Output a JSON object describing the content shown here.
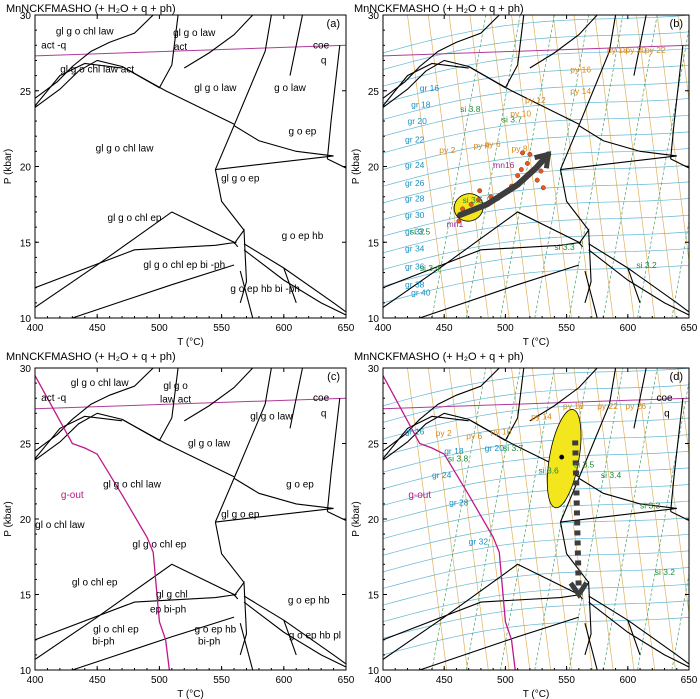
{
  "chart_data": [
    {
      "type": "phase-diagram",
      "panel_label": "(a)",
      "title": "MnNCKFMASHO (+ H₂O + q + ph)",
      "xlabel": "T (°C)",
      "ylabel": "P (kbar)",
      "xlim": [
        400,
        650
      ],
      "ylim": [
        10,
        30
      ],
      "xticks": [
        400,
        450,
        500,
        550,
        600,
        650
      ],
      "yticks": [
        10,
        15,
        20,
        25,
        30
      ],
      "field_labels": [
        {
          "text": "gl g o chl law",
          "x": 440,
          "y": 28.7
        },
        {
          "text": "act -q",
          "x": 415,
          "y": 27.8
        },
        {
          "text": "gl g o law",
          "x": 528,
          "y": 28.6
        },
        {
          "text": "act",
          "x": 517,
          "y": 27.7
        },
        {
          "text": "coe",
          "x": 630,
          "y": 27.8
        },
        {
          "text": "q",
          "x": 632,
          "y": 26.8
        },
        {
          "text": "gl g o chl law act",
          "x": 450,
          "y": 26.2
        },
        {
          "text": "gl g o law",
          "x": 545,
          "y": 25.0
        },
        {
          "text": "g o law",
          "x": 605,
          "y": 25.0
        },
        {
          "text": "g o ep",
          "x": 615,
          "y": 22.1
        },
        {
          "text": "gl g o chl law",
          "x": 472,
          "y": 21.0
        },
        {
          "text": "gl g o ep",
          "x": 565,
          "y": 19.0
        },
        {
          "text": "gl g o chl ep",
          "x": 480,
          "y": 16.4
        },
        {
          "text": "g o ep hb",
          "x": 615,
          "y": 15.2
        },
        {
          "text": "gl g o chl ep bi -ph",
          "x": 520,
          "y": 13.3
        },
        {
          "text": "g o ep hb bi -ph",
          "x": 585,
          "y": 11.7
        }
      ],
      "contours": []
    },
    {
      "type": "phase-diagram",
      "panel_label": "(b)",
      "title": "MnNCKFMASHO (+ H₂O + q + ph)",
      "xlabel": "T (°C)",
      "ylabel": "P (kbar)",
      "xlim": [
        400,
        650
      ],
      "ylim": [
        10,
        30
      ],
      "xticks": [
        400,
        450,
        500,
        550,
        600,
        650
      ],
      "yticks": [
        10,
        15,
        20,
        25,
        30
      ],
      "field_labels": [],
      "contours": [
        {
          "text": "gr 16",
          "x": 430,
          "y": 25.0,
          "color": "#1a8fc0"
        },
        {
          "text": "gr 18",
          "x": 423,
          "y": 23.9,
          "color": "#1a8fc0"
        },
        {
          "text": "gr 20",
          "x": 420,
          "y": 22.8,
          "color": "#1a8fc0"
        },
        {
          "text": "gr 22",
          "x": 418,
          "y": 21.6,
          "color": "#1a8fc0"
        },
        {
          "text": "gr 24",
          "x": 418,
          "y": 19.9,
          "color": "#1a8fc0"
        },
        {
          "text": "gr 26",
          "x": 418,
          "y": 18.7,
          "color": "#1a8fc0"
        },
        {
          "text": "gr 28",
          "x": 418,
          "y": 17.7,
          "color": "#1a8fc0"
        },
        {
          "text": "gr 30",
          "x": 418,
          "y": 16.6,
          "color": "#1a8fc0"
        },
        {
          "text": "gr 32",
          "x": 418,
          "y": 15.5,
          "color": "#1a8fc0"
        },
        {
          "text": "gr 34",
          "x": 418,
          "y": 14.4,
          "color": "#1a8fc0"
        },
        {
          "text": "gr 36",
          "x": 418,
          "y": 13.2,
          "color": "#1a8fc0"
        },
        {
          "text": "gr 38",
          "x": 418,
          "y": 12.0,
          "color": "#1a8fc0"
        },
        {
          "text": "gr 40",
          "x": 423,
          "y": 11.5,
          "color": "#1a8fc0"
        },
        {
          "text": "si 3.8",
          "x": 463,
          "y": 23.6,
          "color": "#1e8a3c"
        },
        {
          "text": "si 3.7",
          "x": 497,
          "y": 22.9,
          "color": "#1e8a3c"
        },
        {
          "text": "si 3.6",
          "x": 465,
          "y": 17.6,
          "color": "#1e8a3c"
        },
        {
          "text": "si 3.5",
          "x": 422,
          "y": 15.5,
          "color": "#1e8a3c"
        },
        {
          "text": "si 3.4",
          "x": 430,
          "y": 13.1,
          "color": "#1e8a3c"
        },
        {
          "text": "si 3.3",
          "x": 540,
          "y": 14.5,
          "color": "#1e8a3c"
        },
        {
          "text": "si 3.2",
          "x": 607,
          "y": 13.3,
          "color": "#1e8a3c"
        },
        {
          "text": "py 16",
          "x": 553,
          "y": 26.2,
          "color": "#d98a1e"
        },
        {
          "text": "py 18",
          "x": 583,
          "y": 27.5,
          "color": "#d98a1e"
        },
        {
          "text": "py 20",
          "x": 598,
          "y": 27.5,
          "color": "#d98a1e"
        },
        {
          "text": "py 22",
          "x": 614,
          "y": 27.5,
          "color": "#d98a1e"
        },
        {
          "text": "py 14",
          "x": 553,
          "y": 24.8,
          "color": "#d98a1e"
        },
        {
          "text": "py 12",
          "x": 516,
          "y": 24.2,
          "color": "#d98a1e"
        },
        {
          "text": "py 10",
          "x": 504,
          "y": 23.3,
          "color": "#d98a1e"
        },
        {
          "text": "py 8",
          "x": 505,
          "y": 21.0,
          "color": "#d98a1e"
        },
        {
          "text": "py 6",
          "x": 483,
          "y": 21.3,
          "color": "#d98a1e"
        },
        {
          "text": "py 4",
          "x": 474,
          "y": 21.2,
          "color": "#d98a1e"
        },
        {
          "text": "py 2",
          "x": 446,
          "y": 20.9,
          "color": "#d98a1e"
        },
        {
          "text": "mn16",
          "x": 490,
          "y": 19.9,
          "color": "#9b2a8f"
        },
        {
          "text": "mn1",
          "x": 452,
          "y": 16.0,
          "color": "#9b2a8f"
        }
      ],
      "pt_path": [
        [
          463,
          16.8
        ],
        [
          485,
          17.5
        ],
        [
          510,
          18.8
        ],
        [
          525,
          19.9
        ],
        [
          535,
          20.8
        ]
      ],
      "ellipse": {
        "cx": 470,
        "cy": 17.3,
        "rx": 12,
        "ry": 0.9
      },
      "points": [
        [
          462,
          16.4
        ],
        [
          465,
          17.2
        ],
        [
          472,
          17.5
        ],
        [
          478,
          17.8
        ],
        [
          488,
          18.0
        ],
        [
          494,
          17.9
        ],
        [
          500,
          18.3
        ],
        [
          505,
          18.7
        ],
        [
          510,
          19.4
        ],
        [
          513,
          19.8
        ],
        [
          518,
          20.2
        ],
        [
          520,
          20.8
        ],
        [
          514,
          20.9
        ],
        [
          526,
          19.1
        ],
        [
          529,
          19.7
        ],
        [
          531,
          18.6
        ],
        [
          479,
          18.4
        ]
      ]
    },
    {
      "type": "phase-diagram",
      "panel_label": "(c)",
      "title": "MnNCKFMASHO (+ H₂O + q + ph)",
      "xlabel": "T (°C)",
      "ylabel": "P (kbar)",
      "xlim": [
        400,
        650
      ],
      "ylim": [
        10,
        30
      ],
      "xticks": [
        400,
        450,
        500,
        550,
        600,
        650
      ],
      "yticks": [
        10,
        15,
        20,
        25,
        30
      ],
      "field_labels": [
        {
          "text": "gl g o chl law",
          "x": 452,
          "y": 28.8
        },
        {
          "text": "act -q",
          "x": 415,
          "y": 27.8
        },
        {
          "text": "gl g o",
          "x": 513,
          "y": 28.6
        },
        {
          "text": "law act",
          "x": 513,
          "y": 27.7
        },
        {
          "text": "coe",
          "x": 630,
          "y": 27.8
        },
        {
          "text": "q",
          "x": 632,
          "y": 26.8
        },
        {
          "text": "gl g o law",
          "x": 590,
          "y": 26.6
        },
        {
          "text": "gl g o law",
          "x": 540,
          "y": 24.8
        },
        {
          "text": "g o ep",
          "x": 613,
          "y": 22.1
        },
        {
          "text": "g-out",
          "x": 430,
          "y": 21.4
        },
        {
          "text": "gl g o chl law",
          "x": 478,
          "y": 22.1
        },
        {
          "text": "gl g o ep",
          "x": 565,
          "y": 20.1
        },
        {
          "text": "gl o chl law",
          "x": 420,
          "y": 19.4
        },
        {
          "text": "gl g o chl ep",
          "x": 500,
          "y": 18.1
        },
        {
          "text": "gl o chl ep",
          "x": 448,
          "y": 15.6
        },
        {
          "text": "gl g chl",
          "x": 510,
          "y": 14.8
        },
        {
          "text": "ep bi-ph",
          "x": 507,
          "y": 13.8
        },
        {
          "text": "g o ep hb",
          "x": 620,
          "y": 14.4
        },
        {
          "text": "g o ep hb pl",
          "x": 625,
          "y": 12.1
        },
        {
          "text": "gl o chl ep",
          "x": 465,
          "y": 12.5
        },
        {
          "text": "bi-ph",
          "x": 455,
          "y": 11.7
        },
        {
          "text": "g o ep hb",
          "x": 545,
          "y": 12.5
        },
        {
          "text": "bi-ph",
          "x": 540,
          "y": 11.7
        }
      ],
      "contours": []
    },
    {
      "type": "phase-diagram",
      "panel_label": "(d)",
      "title": "MnNCKFMASHO (+ H₂O + q + ph)",
      "xlabel": "T (°C)",
      "ylabel": "P (kbar)",
      "xlim": [
        400,
        650
      ],
      "ylim": [
        10,
        30
      ],
      "xticks": [
        400,
        450,
        500,
        550,
        600,
        650
      ],
      "yticks": [
        10,
        15,
        20,
        25,
        30
      ],
      "field_labels": [
        {
          "text": "coe",
          "x": 630,
          "y": 27.8
        },
        {
          "text": "q",
          "x": 632,
          "y": 26.8
        },
        {
          "text": "g-out",
          "x": 430,
          "y": 21.4
        }
      ],
      "contours": [
        {
          "text": "gr 16",
          "x": 418,
          "y": 25.6,
          "color": "#1a8fc0"
        },
        {
          "text": "gr 18",
          "x": 450,
          "y": 24.3,
          "color": "#1a8fc0"
        },
        {
          "text": "gr 20",
          "x": 483,
          "y": 24.5,
          "color": "#1a8fc0"
        },
        {
          "text": "gr 24",
          "x": 440,
          "y": 22.7,
          "color": "#1a8fc0"
        },
        {
          "text": "gr 28",
          "x": 454,
          "y": 20.9,
          "color": "#1a8fc0"
        },
        {
          "text": "gr 32",
          "x": 470,
          "y": 18.3,
          "color": "#1a8fc0"
        },
        {
          "text": "si 3.8",
          "x": 453,
          "y": 23.8,
          "color": "#1e8a3c"
        },
        {
          "text": "si 3.7",
          "x": 498,
          "y": 24.5,
          "color": "#1e8a3c"
        },
        {
          "text": "si 3.6",
          "x": 527,
          "y": 23.0,
          "color": "#1e8a3c"
        },
        {
          "text": "si 3.5",
          "x": 556,
          "y": 23.4,
          "color": "#1e8a3c"
        },
        {
          "text": "si 3.4",
          "x": 578,
          "y": 22.7,
          "color": "#1e8a3c"
        },
        {
          "text": "si 3.3",
          "x": 610,
          "y": 20.7,
          "color": "#1e8a3c"
        },
        {
          "text": "si 3.2",
          "x": 622,
          "y": 16.3,
          "color": "#1e8a3c"
        },
        {
          "text": "py 14",
          "x": 521,
          "y": 26.6,
          "color": "#d98a1e"
        },
        {
          "text": "py 18",
          "x": 547,
          "y": 27.3,
          "color": "#d98a1e"
        },
        {
          "text": "py 22",
          "x": 575,
          "y": 27.3,
          "color": "#d98a1e"
        },
        {
          "text": "py 26",
          "x": 598,
          "y": 27.3,
          "color": "#d98a1e"
        },
        {
          "text": "py 10",
          "x": 488,
          "y": 25.6,
          "color": "#d98a1e"
        },
        {
          "text": "py 6",
          "x": 468,
          "y": 25.3,
          "color": "#d98a1e"
        },
        {
          "text": "py 2",
          "x": 443,
          "y": 25.5,
          "color": "#d98a1e"
        }
      ],
      "pt_path": [
        [
          557,
          25.2
        ],
        [
          558,
          22.0
        ],
        [
          559,
          18.5
        ],
        [
          560,
          15.0
        ]
      ],
      "ellipse": {
        "cx": 548,
        "cy": 24.0,
        "rx": 12,
        "ry": 3.3
      },
      "points": [
        [
          546,
          24.1
        ]
      ]
    }
  ],
  "colors": {
    "boundary": "#000000",
    "coe_q_line": "#b03a9a",
    "g_out_line": "#c0168a",
    "garnet_isopleth": "#63b7d6",
    "pyrope_isopleth": "#e0b25e",
    "si_isopleth": "#4aa06e",
    "ellipse_fill": "#f4e61c",
    "point": "#e25a24",
    "pt_arrow": "#3d3d3d"
  }
}
